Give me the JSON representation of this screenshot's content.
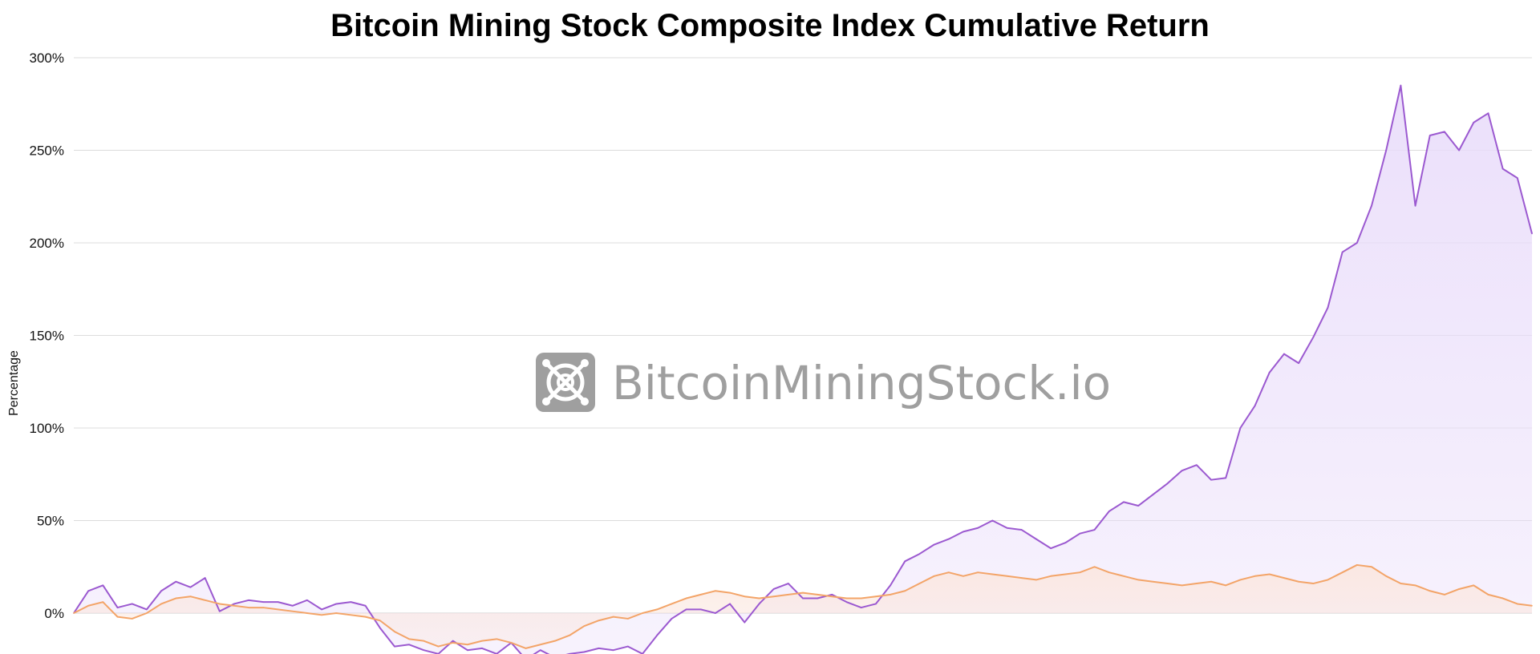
{
  "chart_data": {
    "type": "area",
    "title": "Bitcoin Mining Stock Composite Index Cumulative Return",
    "ylabel": "Percentage",
    "xlabel": "",
    "ylim": [
      -22,
      300
    ],
    "yticks": [
      {
        "value": 300,
        "label": "300%"
      },
      {
        "value": 250,
        "label": "250%"
      },
      {
        "value": 200,
        "label": "200%"
      },
      {
        "value": 150,
        "label": "150%"
      },
      {
        "value": 100,
        "label": "100%"
      },
      {
        "value": 50,
        "label": "50%"
      },
      {
        "value": 0,
        "label": "0%"
      }
    ],
    "grid": true,
    "series": [
      {
        "color": "#9b59d0",
        "fill": "#e9dcfa",
        "x": [
          0,
          1,
          2,
          3,
          4,
          5,
          6,
          7,
          8,
          9,
          10,
          11,
          12,
          13,
          14,
          15,
          16,
          17,
          18,
          19,
          20,
          21,
          22,
          23,
          24,
          25,
          26,
          27,
          28,
          29,
          30,
          31,
          32,
          33,
          34,
          35,
          36,
          37,
          38,
          39,
          40,
          41,
          42,
          43,
          44,
          45,
          46,
          47,
          48,
          49,
          50,
          51,
          52,
          53,
          54,
          55,
          56,
          57,
          58,
          59,
          60,
          61,
          62,
          63,
          64,
          65,
          66,
          67,
          68,
          69,
          70,
          71,
          72,
          73,
          74,
          75,
          76,
          77,
          78,
          79,
          80,
          81,
          82,
          83,
          84,
          85,
          86,
          87,
          88,
          89,
          90,
          91,
          92,
          93,
          94,
          95,
          96,
          97,
          98,
          99,
          100
        ],
        "y": [
          0,
          12,
          15,
          3,
          5,
          2,
          12,
          17,
          14,
          19,
          1,
          5,
          7,
          6,
          6,
          4,
          7,
          2,
          5,
          6,
          4,
          -8,
          -18,
          -17,
          -20,
          -22,
          -15,
          -20,
          -19,
          -22,
          -16,
          -25,
          -20,
          -24,
          -22,
          -21,
          -19,
          -20,
          -18,
          -22,
          -12,
          -3,
          2,
          2,
          0,
          5,
          -5,
          5,
          13,
          16,
          8,
          8,
          10,
          6,
          3,
          5,
          15,
          28,
          32,
          37,
          40,
          44,
          46,
          50,
          46,
          45,
          40,
          35,
          38,
          43,
          45,
          55,
          60,
          58,
          64,
          70,
          77,
          80,
          72,
          73,
          100,
          112,
          130,
          140,
          135,
          149,
          165,
          195,
          200,
          220,
          250,
          285,
          220,
          258,
          260,
          250,
          265,
          270,
          240,
          235,
          205
        ]
      },
      {
        "color": "#f3a468",
        "fill": "#fbe7df",
        "x": [
          0,
          1,
          2,
          3,
          4,
          5,
          6,
          7,
          8,
          9,
          10,
          11,
          12,
          13,
          14,
          15,
          16,
          17,
          18,
          19,
          20,
          21,
          22,
          23,
          24,
          25,
          26,
          27,
          28,
          29,
          30,
          31,
          32,
          33,
          34,
          35,
          36,
          37,
          38,
          39,
          40,
          41,
          42,
          43,
          44,
          45,
          46,
          47,
          48,
          49,
          50,
          51,
          52,
          53,
          54,
          55,
          56,
          57,
          58,
          59,
          60,
          61,
          62,
          63,
          64,
          65,
          66,
          67,
          68,
          69,
          70,
          71,
          72,
          73,
          74,
          75,
          76,
          77,
          78,
          79,
          80,
          81,
          82,
          83,
          84,
          85,
          86,
          87,
          88,
          89,
          90,
          91,
          92,
          93,
          94,
          95,
          96,
          97,
          98,
          99,
          100
        ],
        "y": [
          0,
          4,
          6,
          -2,
          -3,
          0,
          5,
          8,
          9,
          7,
          5,
          4,
          3,
          3,
          2,
          1,
          0,
          -1,
          0,
          -1,
          -2,
          -4,
          -10,
          -14,
          -15,
          -18,
          -16,
          -17,
          -15,
          -14,
          -16,
          -19,
          -17,
          -15,
          -12,
          -7,
          -4,
          -2,
          -3,
          0,
          2,
          5,
          8,
          10,
          12,
          11,
          9,
          8,
          9,
          10,
          11,
          10,
          9,
          8,
          8,
          9,
          10,
          12,
          16,
          20,
          22,
          20,
          22,
          21,
          20,
          19,
          18,
          20,
          21,
          22,
          25,
          22,
          20,
          18,
          17,
          16,
          15,
          16,
          17,
          15,
          18,
          20,
          21,
          19,
          17,
          16,
          18,
          22,
          26,
          25,
          20,
          16,
          15,
          12,
          10,
          13,
          15,
          10,
          8,
          5,
          4
        ]
      }
    ]
  },
  "watermark": {
    "text": "BitcoinMiningStock.io",
    "icon": "mining-cross-icon",
    "color": "#9a9a9a"
  },
  "colors": {
    "grid": "#dcdcdc",
    "zero_line": "#cfcfcf"
  }
}
